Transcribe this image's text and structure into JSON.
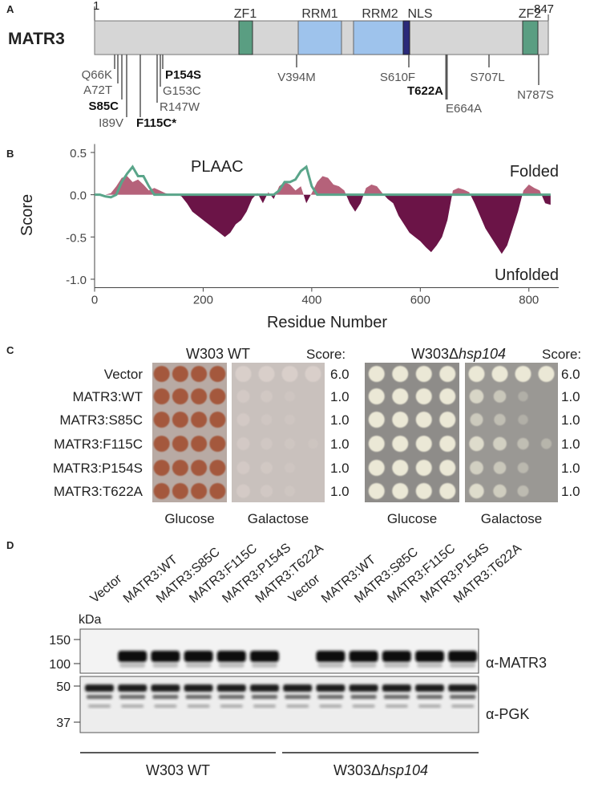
{
  "panel_labels": [
    "A",
    "B",
    "C",
    "D"
  ],
  "panel_a": {
    "protein": "MATR3",
    "start": "1",
    "end": "847",
    "domains": [
      "ZF1",
      "RRM1",
      "RRM2",
      "NLS",
      "ZF2"
    ],
    "mutations": [
      "Q66K",
      "A72T",
      "S85C",
      "I89V",
      "F115C*",
      "R147W",
      "G153C",
      "P154S",
      "V394M",
      "S610F",
      "T622A",
      "E664A",
      "S707L",
      "N787S"
    ]
  },
  "chart_data": {
    "type": "area",
    "ylabel": "Score",
    "xlabel": "Residue Number",
    "annotations": [
      {
        "text": "Folded",
        "color": "#b5627a"
      },
      {
        "text": "Unfolded",
        "color": "#6b1447"
      }
    ],
    "x": [
      0,
      10,
      20,
      30,
      40,
      50,
      60,
      70,
      80,
      90,
      100,
      110,
      120,
      130,
      140,
      150,
      160,
      170,
      180,
      190,
      200,
      210,
      220,
      230,
      240,
      250,
      260,
      270,
      280,
      290,
      300,
      310,
      320,
      330,
      340,
      350,
      360,
      370,
      380,
      390,
      400,
      410,
      420,
      430,
      440,
      450,
      460,
      470,
      480,
      490,
      500,
      510,
      520,
      530,
      540,
      550,
      560,
      570,
      580,
      590,
      600,
      610,
      620,
      630,
      640,
      650,
      660,
      670,
      680,
      690,
      700,
      710,
      720,
      730,
      740,
      750,
      760,
      770,
      780,
      790,
      800,
      810,
      820,
      830,
      840
    ],
    "series": [
      {
        "kind": "area",
        "color_above": "#b5627a",
        "color_below": "#6b1447",
        "values": [
          0,
          0,
          0,
          0.02,
          0.1,
          0.2,
          0.22,
          0.15,
          0.18,
          0.12,
          0.05,
          0.08,
          0.05,
          0.02,
          0,
          0.01,
          -0.02,
          -0.1,
          -0.2,
          -0.25,
          -0.3,
          -0.35,
          -0.4,
          -0.45,
          -0.5,
          -0.45,
          -0.35,
          -0.3,
          -0.2,
          -0.05,
          0.02,
          -0.1,
          0.03,
          -0.05,
          0.1,
          0.15,
          0.12,
          0.05,
          0.1,
          -0.1,
          0.02,
          0.15,
          0.22,
          0.2,
          0.12,
          0.1,
          0.05,
          -0.1,
          -0.2,
          -0.1,
          0.08,
          0.12,
          0.1,
          0.02,
          -0.05,
          -0.1,
          -0.25,
          -0.35,
          -0.45,
          -0.5,
          -0.55,
          -0.62,
          -0.68,
          -0.6,
          -0.5,
          -0.3,
          0.05,
          0.08,
          0.06,
          0.03,
          -0.1,
          -0.25,
          -0.4,
          -0.5,
          -0.6,
          -0.7,
          -0.6,
          -0.4,
          -0.2,
          0.05,
          0.12,
          0.08,
          0.05,
          -0.1,
          -0.12
        ]
      },
      {
        "kind": "line",
        "name": "PLAAC",
        "color": "#5aa58a",
        "values": [
          0,
          0,
          -0.02,
          -0.03,
          0,
          0.15,
          0.25,
          0.33,
          0.22,
          0.22,
          0.1,
          0,
          0,
          0,
          0,
          0,
          0,
          0,
          0,
          0,
          0,
          0,
          0,
          0,
          0,
          0,
          0,
          0,
          0,
          0,
          0,
          0,
          0,
          0,
          0.05,
          0.15,
          0.15,
          0.18,
          0.28,
          0.33,
          0.1,
          0,
          0,
          0,
          0,
          0,
          0,
          0,
          0,
          0,
          0,
          0,
          0,
          0,
          0,
          0,
          0,
          0,
          0,
          0,
          0,
          0,
          0,
          0,
          0,
          0,
          0,
          0,
          0,
          0,
          0,
          0,
          0,
          0,
          0,
          0,
          0,
          0,
          0,
          0,
          0,
          0,
          0,
          0,
          0
        ]
      }
    ],
    "xlim": [
      0,
      855
    ],
    "xticks": [
      0,
      200,
      400,
      600,
      800
    ],
    "ylim": [
      -1.1,
      0.6
    ],
    "yticks": [
      0.5,
      {
        "value": 0,
        "label": "0.0"
      },
      -0.5,
      {
        "value": -1,
        "label": "-1.0"
      }
    ]
  },
  "panel_c": {
    "strains": [
      {
        "prefix": "W303 WT",
        "italic": ""
      },
      {
        "prefix": "W303Δ",
        "italic": "hsp104"
      }
    ],
    "score_header": "Score:",
    "rows": [
      "Vector",
      "MATR3:WT",
      "MATR3:S85C",
      "MATR3:F115C",
      "MATR3:P154S",
      "MATR3:T622A"
    ],
    "scores": [
      [
        "6.0",
        "1.0",
        "1.0",
        "1.0",
        "1.0",
        "1.0"
      ],
      [
        "6.0",
        "1.0",
        "1.0",
        "1.0",
        "1.0",
        "1.0"
      ]
    ],
    "media": [
      "Glucose",
      "Galactose"
    ]
  },
  "panel_d": {
    "lanes": [
      "Vector",
      "MATR3:WT",
      "MATR3:S85C",
      "MATR3:F115C",
      "MATR3:P154S",
      "MATR3:T622A"
    ],
    "unit": "kDa",
    "markers_top": [
      "150",
      "100"
    ],
    "markers_bottom": [
      "50",
      "37"
    ],
    "antibodies": [
      "α-MATR3",
      "α-PGK"
    ],
    "strains": [
      {
        "prefix": "W303 WT",
        "italic": ""
      },
      {
        "prefix": "W303Δ",
        "italic": "hsp104"
      }
    ]
  }
}
